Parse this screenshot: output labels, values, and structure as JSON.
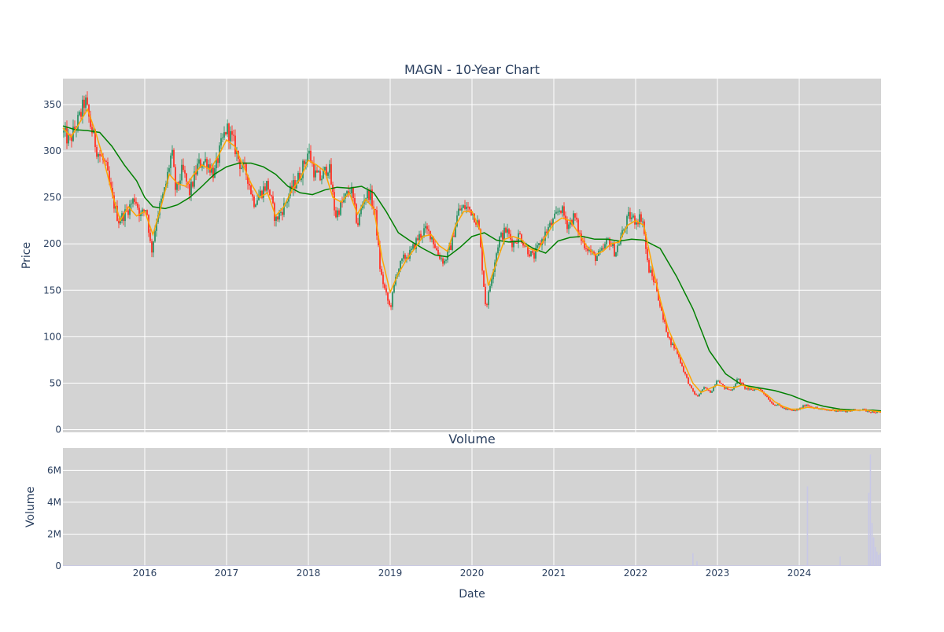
{
  "colors": {
    "plot_bg": "#d3d3d3",
    "grid": "#ffffff",
    "text": "#2a3f5f",
    "candle_up": "#3d9970",
    "candle_down": "#ff4136",
    "ma_short": "#ffa500",
    "ma_long": "#008000",
    "volume_bar": "#c8c8e6"
  },
  "chart_data": [
    {
      "type": "candlestick",
      "title": "MAGN - 10-Year Chart",
      "ylabel": "Price",
      "ylim": [
        -3,
        378
      ],
      "yticks": [
        {
          "value": 0,
          "label": "0"
        },
        {
          "value": 50,
          "label": "50"
        },
        {
          "value": 100,
          "label": "100"
        },
        {
          "value": 150,
          "label": "150"
        },
        {
          "value": 200,
          "label": "200"
        },
        {
          "value": 250,
          "label": "250"
        },
        {
          "value": 300,
          "label": "300"
        },
        {
          "value": 350,
          "label": "350"
        }
      ],
      "xlim": [
        2015.0,
        2025.0
      ],
      "price_points": [
        [
          2015.0,
          320
        ],
        [
          2015.08,
          310
        ],
        [
          2015.15,
          325
        ],
        [
          2015.22,
          340
        ],
        [
          2015.27,
          355
        ],
        [
          2015.33,
          330
        ],
        [
          2015.42,
          300
        ],
        [
          2015.52,
          285
        ],
        [
          2015.6,
          250
        ],
        [
          2015.68,
          225
        ],
        [
          2015.78,
          235
        ],
        [
          2015.88,
          250
        ],
        [
          2015.95,
          230
        ],
        [
          2016.02,
          240
        ],
        [
          2016.08,
          190
        ],
        [
          2016.15,
          230
        ],
        [
          2016.25,
          260
        ],
        [
          2016.33,
          300
        ],
        [
          2016.38,
          255
        ],
        [
          2016.46,
          280
        ],
        [
          2016.55,
          255
        ],
        [
          2016.65,
          285
        ],
        [
          2016.75,
          290
        ],
        [
          2016.85,
          275
        ],
        [
          2016.93,
          305
        ],
        [
          2017.0,
          325
        ],
        [
          2017.08,
          310
        ],
        [
          2017.17,
          285
        ],
        [
          2017.25,
          275
        ],
        [
          2017.33,
          245
        ],
        [
          2017.42,
          255
        ],
        [
          2017.5,
          265
        ],
        [
          2017.6,
          225
        ],
        [
          2017.7,
          240
        ],
        [
          2017.8,
          260
        ],
        [
          2017.9,
          275
        ],
        [
          2018.0,
          300
        ],
        [
          2018.08,
          275
        ],
        [
          2018.15,
          270
        ],
        [
          2018.25,
          285
        ],
        [
          2018.33,
          230
        ],
        [
          2018.42,
          245
        ],
        [
          2018.52,
          260
        ],
        [
          2018.6,
          220
        ],
        [
          2018.68,
          250
        ],
        [
          2018.75,
          255
        ],
        [
          2018.82,
          230
        ],
        [
          2018.88,
          170
        ],
        [
          2018.95,
          145
        ],
        [
          2019.0,
          130
        ],
        [
          2019.08,
          170
        ],
        [
          2019.17,
          185
        ],
        [
          2019.25,
          190
        ],
        [
          2019.33,
          205
        ],
        [
          2019.42,
          215
        ],
        [
          2019.5,
          210
        ],
        [
          2019.58,
          190
        ],
        [
          2019.66,
          180
        ],
        [
          2019.75,
          200
        ],
        [
          2019.83,
          235
        ],
        [
          2019.92,
          240
        ],
        [
          2020.0,
          235
        ],
        [
          2020.08,
          220
        ],
        [
          2020.17,
          130
        ],
        [
          2020.25,
          170
        ],
        [
          2020.33,
          205
        ],
        [
          2020.42,
          215
        ],
        [
          2020.5,
          200
        ],
        [
          2020.58,
          210
        ],
        [
          2020.67,
          195
        ],
        [
          2020.75,
          185
        ],
        [
          2020.83,
          200
        ],
        [
          2020.92,
          215
        ],
        [
          2021.0,
          225
        ],
        [
          2021.08,
          240
        ],
        [
          2021.17,
          220
        ],
        [
          2021.25,
          230
        ],
        [
          2021.33,
          205
        ],
        [
          2021.42,
          195
        ],
        [
          2021.5,
          185
        ],
        [
          2021.58,
          190
        ],
        [
          2021.67,
          205
        ],
        [
          2021.75,
          190
        ],
        [
          2021.83,
          210
        ],
        [
          2021.92,
          230
        ],
        [
          2022.0,
          225
        ],
        [
          2022.08,
          230
        ],
        [
          2022.15,
          175
        ],
        [
          2022.25,
          155
        ],
        [
          2022.33,
          120
        ],
        [
          2022.42,
          95
        ],
        [
          2022.5,
          85
        ],
        [
          2022.58,
          65
        ],
        [
          2022.67,
          45
        ],
        [
          2022.75,
          35
        ],
        [
          2022.83,
          45
        ],
        [
          2022.92,
          40
        ],
        [
          2023.0,
          55
        ],
        [
          2023.08,
          45
        ],
        [
          2023.17,
          42
        ],
        [
          2023.25,
          55
        ],
        [
          2023.33,
          45
        ],
        [
          2023.42,
          42
        ],
        [
          2023.5,
          45
        ],
        [
          2023.58,
          38
        ],
        [
          2023.67,
          28
        ],
        [
          2023.75,
          26
        ],
        [
          2023.83,
          22
        ],
        [
          2023.92,
          20
        ],
        [
          2024.0,
          22
        ],
        [
          2024.08,
          27
        ],
        [
          2024.17,
          24
        ],
        [
          2024.25,
          22
        ],
        [
          2024.33,
          21
        ],
        [
          2024.42,
          21
        ],
        [
          2024.5,
          20
        ],
        [
          2024.58,
          20
        ],
        [
          2024.67,
          21
        ],
        [
          2024.75,
          22
        ],
        [
          2024.83,
          20
        ],
        [
          2024.92,
          19
        ],
        [
          2025.0,
          18
        ]
      ],
      "moving_average_short": [
        [
          2015.0,
          325
        ],
        [
          2015.1,
          315
        ],
        [
          2015.2,
          330
        ],
        [
          2015.3,
          345
        ],
        [
          2015.4,
          320
        ],
        [
          2015.5,
          290
        ],
        [
          2015.6,
          255
        ],
        [
          2015.7,
          225
        ],
        [
          2015.8,
          240
        ],
        [
          2015.9,
          230
        ],
        [
          2016.0,
          235
        ],
        [
          2016.1,
          210
        ],
        [
          2016.2,
          240
        ],
        [
          2016.3,
          275
        ],
        [
          2016.4,
          265
        ],
        [
          2016.5,
          262
        ],
        [
          2016.6,
          275
        ],
        [
          2016.7,
          285
        ],
        [
          2016.8,
          280
        ],
        [
          2016.9,
          295
        ],
        [
          2017.0,
          312
        ],
        [
          2017.1,
          305
        ],
        [
          2017.2,
          285
        ],
        [
          2017.3,
          265
        ],
        [
          2017.4,
          250
        ],
        [
          2017.5,
          255
        ],
        [
          2017.6,
          230
        ],
        [
          2017.7,
          240
        ],
        [
          2017.8,
          258
        ],
        [
          2017.9,
          270
        ],
        [
          2018.0,
          290
        ],
        [
          2018.1,
          285
        ],
        [
          2018.2,
          278
        ],
        [
          2018.3,
          250
        ],
        [
          2018.4,
          245
        ],
        [
          2018.5,
          255
        ],
        [
          2018.6,
          232
        ],
        [
          2018.7,
          248
        ],
        [
          2018.8,
          238
        ],
        [
          2018.9,
          185
        ],
        [
          2019.0,
          148
        ],
        [
          2019.1,
          168
        ],
        [
          2019.2,
          183
        ],
        [
          2019.3,
          195
        ],
        [
          2019.4,
          208
        ],
        [
          2019.5,
          210
        ],
        [
          2019.6,
          198
        ],
        [
          2019.7,
          192
        ],
        [
          2019.8,
          220
        ],
        [
          2019.9,
          235
        ],
        [
          2020.0,
          235
        ],
        [
          2020.1,
          215
        ],
        [
          2020.2,
          155
        ],
        [
          2020.3,
          180
        ],
        [
          2020.4,
          205
        ],
        [
          2020.5,
          208
        ],
        [
          2020.6,
          205
        ],
        [
          2020.7,
          195
        ],
        [
          2020.8,
          192
        ],
        [
          2020.9,
          208
        ],
        [
          2021.0,
          222
        ],
        [
          2021.1,
          228
        ],
        [
          2021.2,
          225
        ],
        [
          2021.3,
          212
        ],
        [
          2021.4,
          198
        ],
        [
          2021.5,
          188
        ],
        [
          2021.6,
          192
        ],
        [
          2021.7,
          200
        ],
        [
          2021.8,
          202
        ],
        [
          2021.9,
          220
        ],
        [
          2022.0,
          225
        ],
        [
          2022.1,
          220
        ],
        [
          2022.2,
          178
        ],
        [
          2022.3,
          140
        ],
        [
          2022.4,
          108
        ],
        [
          2022.5,
          88
        ],
        [
          2022.6,
          70
        ],
        [
          2022.7,
          50
        ],
        [
          2022.8,
          40
        ],
        [
          2022.9,
          44
        ],
        [
          2023.0,
          48
        ],
        [
          2023.1,
          46
        ],
        [
          2023.2,
          45
        ],
        [
          2023.3,
          48
        ],
        [
          2023.4,
          45
        ],
        [
          2023.5,
          43
        ],
        [
          2023.6,
          38
        ],
        [
          2023.7,
          30
        ],
        [
          2023.8,
          25
        ],
        [
          2023.9,
          22
        ],
        [
          2024.0,
          22
        ],
        [
          2024.1,
          24
        ],
        [
          2024.2,
          23
        ],
        [
          2024.3,
          22
        ],
        [
          2024.4,
          21
        ],
        [
          2024.5,
          21
        ],
        [
          2024.6,
          20
        ],
        [
          2024.7,
          21
        ],
        [
          2024.8,
          21
        ],
        [
          2024.9,
          20
        ],
        [
          2025.0,
          19
        ]
      ],
      "moving_average_long": [
        [
          2015.0,
          327
        ],
        [
          2015.15,
          323
        ],
        [
          2015.3,
          322
        ],
        [
          2015.45,
          320
        ],
        [
          2015.6,
          305
        ],
        [
          2015.75,
          285
        ],
        [
          2015.9,
          268
        ],
        [
          2016.0,
          250
        ],
        [
          2016.1,
          240
        ],
        [
          2016.25,
          238
        ],
        [
          2016.4,
          242
        ],
        [
          2016.55,
          250
        ],
        [
          2016.7,
          262
        ],
        [
          2016.85,
          275
        ],
        [
          2017.0,
          283
        ],
        [
          2017.15,
          287
        ],
        [
          2017.3,
          287
        ],
        [
          2017.45,
          283
        ],
        [
          2017.6,
          275
        ],
        [
          2017.75,
          262
        ],
        [
          2017.9,
          255
        ],
        [
          2018.05,
          253
        ],
        [
          2018.2,
          258
        ],
        [
          2018.35,
          261
        ],
        [
          2018.5,
          260
        ],
        [
          2018.65,
          262
        ],
        [
          2018.8,
          255
        ],
        [
          2018.95,
          235
        ],
        [
          2019.1,
          212
        ],
        [
          2019.25,
          203
        ],
        [
          2019.4,
          195
        ],
        [
          2019.55,
          188
        ],
        [
          2019.7,
          186
        ],
        [
          2019.85,
          196
        ],
        [
          2020.0,
          208
        ],
        [
          2020.15,
          212
        ],
        [
          2020.3,
          204
        ],
        [
          2020.45,
          202
        ],
        [
          2020.6,
          203
        ],
        [
          2020.75,
          195
        ],
        [
          2020.9,
          190
        ],
        [
          2021.05,
          203
        ],
        [
          2021.2,
          207
        ],
        [
          2021.35,
          208
        ],
        [
          2021.5,
          205
        ],
        [
          2021.65,
          205
        ],
        [
          2021.8,
          203
        ],
        [
          2021.95,
          205
        ],
        [
          2022.1,
          204
        ],
        [
          2022.3,
          195
        ],
        [
          2022.5,
          165
        ],
        [
          2022.7,
          130
        ],
        [
          2022.9,
          85
        ],
        [
          2023.1,
          60
        ],
        [
          2023.3,
          48
        ],
        [
          2023.5,
          45
        ],
        [
          2023.7,
          42
        ],
        [
          2023.9,
          37
        ],
        [
          2024.1,
          30
        ],
        [
          2024.3,
          25
        ],
        [
          2024.5,
          22
        ],
        [
          2024.7,
          21
        ],
        [
          2024.9,
          21
        ],
        [
          2025.0,
          20
        ]
      ]
    },
    {
      "type": "bar",
      "title": "Volume",
      "ylabel": "Volume",
      "xlabel": "Date",
      "ylim": [
        0,
        7400000
      ],
      "yticks": [
        {
          "value": 0,
          "label": "0"
        },
        {
          "value": 2000000,
          "label": "2M"
        },
        {
          "value": 4000000,
          "label": "4M"
        },
        {
          "value": 6000000,
          "label": "6M"
        }
      ],
      "xticks": [
        {
          "value": 2016,
          "label": "2016"
        },
        {
          "value": 2017,
          "label": "2017"
        },
        {
          "value": 2018,
          "label": "2018"
        },
        {
          "value": 2019,
          "label": "2019"
        },
        {
          "value": 2020,
          "label": "2020"
        },
        {
          "value": 2021,
          "label": "2021"
        },
        {
          "value": 2022,
          "label": "2022"
        },
        {
          "value": 2023,
          "label": "2023"
        },
        {
          "value": 2024,
          "label": "2024"
        }
      ],
      "volume_spikes": [
        [
          2022.7,
          800000
        ],
        [
          2022.75,
          300000
        ],
        [
          2024.1,
          5000000
        ],
        [
          2024.5,
          600000
        ],
        [
          2024.85,
          4600000
        ],
        [
          2024.87,
          7000000
        ],
        [
          2024.89,
          2700000
        ],
        [
          2024.91,
          1800000
        ],
        [
          2024.93,
          1200000
        ],
        [
          2024.95,
          900000
        ],
        [
          2024.97,
          700000
        ],
        [
          2024.99,
          800000
        ]
      ],
      "baseline_volume": 40000
    }
  ]
}
